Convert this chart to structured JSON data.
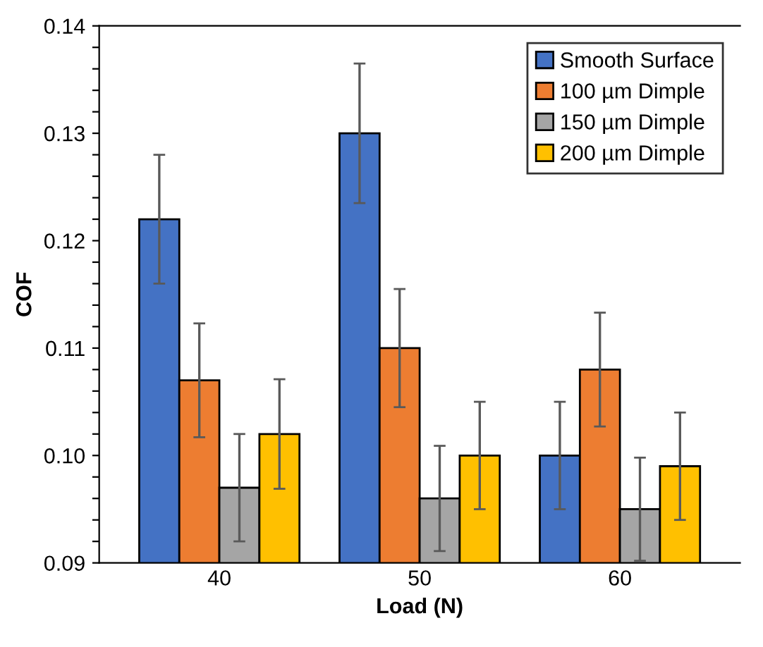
{
  "chart_data": {
    "type": "bar",
    "xlabel": "Load (N)",
    "ylabel": "COF",
    "categories": [
      "40",
      "50",
      "60"
    ],
    "series": [
      {
        "name": "Smooth Surface",
        "color": "#4472c4",
        "values": [
          0.122,
          0.13,
          0.1
        ],
        "errors": [
          0.006,
          0.0065,
          0.005
        ]
      },
      {
        "name": "100 µm Dimple",
        "color": "#ed7d31",
        "values": [
          0.107,
          0.11,
          0.108
        ],
        "errors": [
          0.0053,
          0.0055,
          0.0053
        ]
      },
      {
        "name": "150 µm Dimple",
        "color": "#a5a5a5",
        "values": [
          0.097,
          0.096,
          0.095
        ],
        "errors": [
          0.005,
          0.0049,
          0.0048
        ]
      },
      {
        "name": "200 µm Dimple",
        "color": "#ffc000",
        "values": [
          0.102,
          0.1,
          0.099
        ],
        "errors": [
          0.0051,
          0.005,
          0.005
        ]
      }
    ],
    "ylim": [
      0.09,
      0.14
    ],
    "yticks": [
      {
        "value": 0.09,
        "label": "0.09"
      },
      {
        "value": 0.092,
        "label": null
      },
      {
        "value": 0.094,
        "label": null
      },
      {
        "value": 0.096,
        "label": null
      },
      {
        "value": 0.098,
        "label": null
      },
      {
        "value": 0.1,
        "label": "0.10"
      },
      {
        "value": 0.102,
        "label": null
      },
      {
        "value": 0.104,
        "label": null
      },
      {
        "value": 0.106,
        "label": null
      },
      {
        "value": 0.108,
        "label": null
      },
      {
        "value": 0.11,
        "label": "0.11"
      },
      {
        "value": 0.112,
        "label": null
      },
      {
        "value": 0.114,
        "label": null
      },
      {
        "value": 0.116,
        "label": null
      },
      {
        "value": 0.118,
        "label": null
      },
      {
        "value": 0.12,
        "label": "0.12"
      },
      {
        "value": 0.122,
        "label": null
      },
      {
        "value": 0.124,
        "label": null
      },
      {
        "value": 0.126,
        "label": null
      },
      {
        "value": 0.128,
        "label": null
      },
      {
        "value": 0.13,
        "label": "0.13"
      },
      {
        "value": 0.132,
        "label": null
      },
      {
        "value": 0.134,
        "label": null
      },
      {
        "value": 0.136,
        "label": null
      },
      {
        "value": 0.138,
        "label": null
      },
      {
        "value": 0.14,
        "label": "0.14"
      }
    ],
    "legend": "top right",
    "grid": false
  }
}
